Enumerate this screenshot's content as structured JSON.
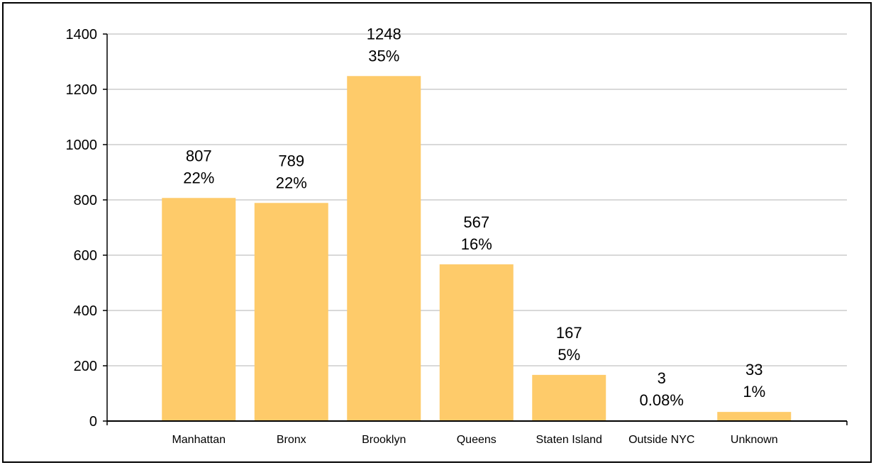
{
  "chart_data": {
    "type": "bar",
    "title": "",
    "xlabel": "",
    "ylabel": "",
    "categories": [
      "Manhattan",
      "Bronx",
      "Brooklyn",
      "Queens",
      "Staten Island",
      "Outside NYC",
      "Unknown"
    ],
    "values": [
      807,
      789,
      1248,
      567,
      167,
      3,
      33
    ],
    "percent_labels": [
      "22%",
      "22%",
      "35%",
      "16%",
      "5%",
      "0.08%",
      "1%"
    ],
    "ylim": [
      0,
      1400
    ],
    "yticks": [
      0,
      200,
      400,
      600,
      800,
      1000,
      1200,
      1400
    ],
    "grid": true,
    "legend": "none",
    "colors": {
      "bar": "#FECB6A",
      "grid": "#D9D9D9",
      "axis": "#000000"
    }
  }
}
